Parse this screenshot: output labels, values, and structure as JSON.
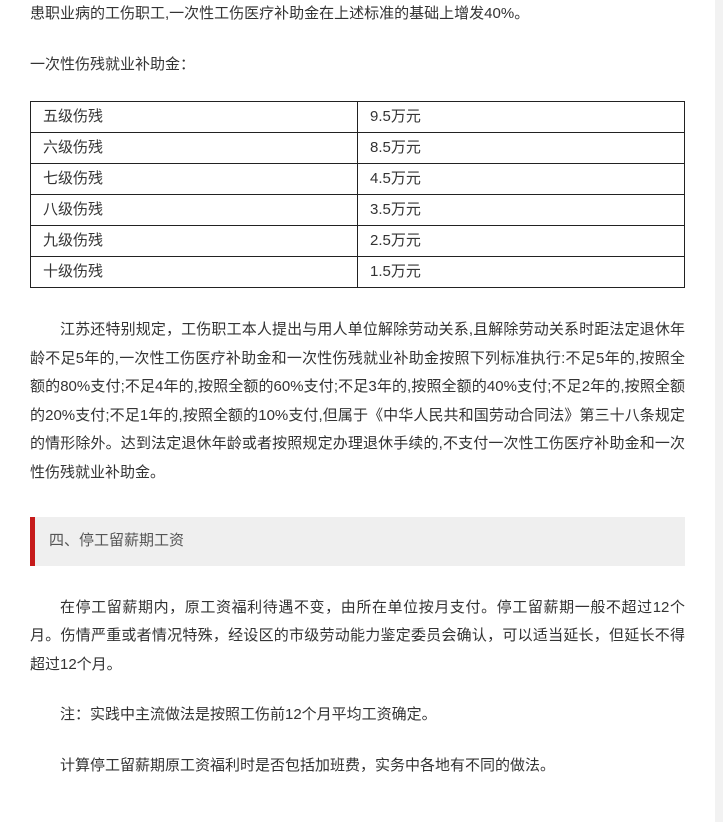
{
  "intro": {
    "line1": "患职业病的工伤职工,一次性工伤医疗补助金在上述标准的基础上增发40%。",
    "line2": "一次性伤残就业补助金："
  },
  "table": {
    "rows": [
      {
        "level": "五级伤残",
        "amount": "9.5万元"
      },
      {
        "level": "六级伤残",
        "amount": "8.5万元"
      },
      {
        "level": "七级伤残",
        "amount": "4.5万元"
      },
      {
        "level": "八级伤残",
        "amount": "3.5万元"
      },
      {
        "level": "九级伤残",
        "amount": "2.5万元"
      },
      {
        "level": "十级伤残",
        "amount": "1.5万元"
      }
    ]
  },
  "jiangsu_note": "江苏还特别规定，工伤职工本人提出与用人单位解除劳动关系,且解除劳动关系时距法定退休年龄不足5年的,一次性工伤医疗补助金和一次性伤残就业补助金按照下列标准执行:不足5年的,按照全额的80%支付;不足4年的,按照全额的60%支付;不足3年的,按照全额的40%支付;不足2年的,按照全额的20%支付;不足1年的,按照全额的10%支付,但属于《中华人民共和国劳动合同法》第三十八条规定的情形除外。达到法定退休年龄或者按照规定办理退休手续的,不支付一次性工伤医疗补助金和一次性伤残就业补助金。",
  "section4": {
    "title": "四、停工留薪期工资",
    "p1": "在停工留薪期内，原工资福利待遇不变，由所在单位按月支付。停工留薪期一般不超过12个月。伤情严重或者情况特殊，经设区的市级劳动能力鉴定委员会确认，可以适当延长，但延长不得超过12个月。",
    "p2": "注：实践中主流做法是按照工伤前12个月平均工资确定。",
    "p3": "计算停工留薪期原工资福利时是否包括加班费，实务中各地有不同的做法。"
  },
  "colors": {
    "page_bg": "#ffffff",
    "body_bg": "#f2f2f2",
    "text": "#333333",
    "border": "#222222",
    "header_bg": "#efefef",
    "header_accent": "#c61b1b",
    "header_text": "#555555"
  }
}
